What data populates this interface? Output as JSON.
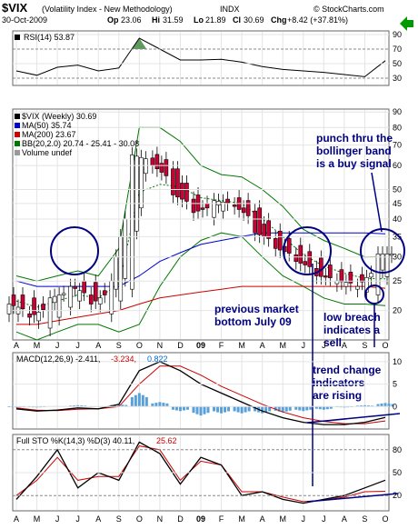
{
  "header": {
    "symbol": "$VIX",
    "description": "(Volatility Index - New Methodology)",
    "exchange": "INDX",
    "date": "30-Oct-2009",
    "open_label": "Op",
    "open": "23.06",
    "high_label": "Hi",
    "high": "31.59",
    "low_label": "Lo",
    "low": "21.89",
    "close_label": "Cl",
    "close": "30.69",
    "change_label": "Chg",
    "change": "+8.42 (+37.81%)",
    "watermark": "© StockCharts.com",
    "trend_arrow_color": "#009900"
  },
  "chart_data": [
    {
      "type": "line",
      "panel": "rsi",
      "legend": "RSI(14) 53.87",
      "ylim": [
        20,
        95
      ],
      "ticks": [
        "90",
        "70",
        "50",
        "30"
      ],
      "reference_lines": [
        70,
        30
      ],
      "x": [
        "Apr-08",
        "May-08",
        "Jun-08",
        "Jul-08",
        "Aug-08",
        "Sep-08",
        "Oct-08",
        "Nov-08",
        "Dec-08",
        "Jan-09",
        "Feb-09",
        "Mar-09",
        "Apr-09",
        "May-09",
        "Jun-09",
        "Jul-09",
        "Aug-09",
        "Sep-09",
        "Oct-09"
      ],
      "series": [
        {
          "name": "RSI(14)",
          "values": [
            40,
            34,
            45,
            48,
            40,
            44,
            85,
            70,
            55,
            55,
            56,
            52,
            46,
            42,
            40,
            38,
            35,
            32,
            54
          ]
        }
      ]
    },
    {
      "type": "candlestick",
      "panel": "price",
      "legend": [
        "$VIX (Weekly) 30.69",
        "MA(50) 35.74",
        "MA(200) 23.67",
        "BB(20,2.0) 20.74 - 25.41 - 30.08",
        "Volume undef"
      ],
      "ylim": [
        16,
        92
      ],
      "ticks": [
        "90",
        "80",
        "70",
        "60",
        "50",
        "45",
        "40",
        "35",
        "30",
        "25",
        "20"
      ],
      "x": [
        "Apr-08",
        "May-08",
        "Jun-08",
        "Jul-08",
        "Aug-08",
        "Sep-08",
        "Oct-08",
        "Nov-08",
        "Dec-08",
        "Jan-09",
        "Feb-09",
        "Mar-09",
        "Apr-09",
        "May-09",
        "Jun-09",
        "Jul-09",
        "Aug-09",
        "Sep-09",
        "Oct-09"
      ],
      "series": [
        {
          "name": "$VIX (Weekly)",
          "values": [
            21,
            19,
            22,
            24,
            21,
            25,
            65,
            60,
            48,
            42,
            46,
            44,
            36,
            32,
            29,
            26,
            25,
            24,
            30.69
          ]
        },
        {
          "name": "MA(50)",
          "values": [
            25,
            24,
            24,
            24,
            24,
            24,
            26,
            29,
            31,
            33,
            34,
            35,
            36,
            36,
            36,
            36,
            36,
            36,
            35.74
          ]
        },
        {
          "name": "MA(200)",
          "values": [
            18,
            18,
            18.5,
            19,
            19.5,
            20,
            21,
            22,
            22.5,
            23,
            23.5,
            24,
            24,
            24,
            24,
            24,
            24,
            24,
            23.67
          ]
        },
        {
          "name": "BB upper",
          "values": [
            26,
            25,
            26,
            27,
            26,
            32,
            80,
            80,
            72,
            60,
            56,
            55,
            50,
            44,
            37,
            34,
            32,
            30,
            30.08
          ]
        },
        {
          "name": "BB lower",
          "values": [
            17,
            16,
            17,
            18,
            18,
            17,
            18,
            24,
            30,
            34,
            36,
            35,
            30,
            26,
            24,
            22,
            21,
            21,
            20.74
          ]
        }
      ],
      "annotations": [
        "punch thru the bollinger band is a buy signal",
        "previous market bottom July 09",
        "low breach indicates a sell"
      ]
    },
    {
      "type": "line",
      "panel": "macd",
      "legend": [
        "MACD(12,26,9) -2.411,",
        "-3.234,",
        "0.822"
      ],
      "ylim": [
        -5,
        12
      ],
      "ticks": [
        "10",
        "5",
        "0"
      ],
      "x": [
        "Apr-08",
        "May-08",
        "Jun-08",
        "Jul-08",
        "Aug-08",
        "Sep-08",
        "Oct-08",
        "Nov-08",
        "Dec-08",
        "Jan-09",
        "Feb-09",
        "Mar-09",
        "Apr-09",
        "May-09",
        "Jun-09",
        "Jul-09",
        "Aug-09",
        "Sep-09",
        "Oct-09"
      ],
      "series": [
        {
          "name": "MACD",
          "values": [
            -0.5,
            -1,
            -0.8,
            -0.3,
            -0.5,
            0.5,
            8,
            10,
            8,
            5,
            3,
            1,
            -1,
            -2.5,
            -3.5,
            -4,
            -4,
            -3.5,
            -2.4
          ]
        },
        {
          "name": "Signal",
          "values": [
            -0.3,
            -0.8,
            -0.9,
            -0.6,
            -0.5,
            0,
            5,
            9,
            9,
            7,
            4.5,
            2.5,
            0.5,
            -1.2,
            -2.5,
            -3.3,
            -3.8,
            -3.8,
            -3.2
          ]
        },
        {
          "name": "Histogram",
          "values": [
            -0.2,
            -0.2,
            0.1,
            0.3,
            0,
            0.5,
            3,
            1,
            -1,
            -2,
            -1.5,
            -1.5,
            -1.5,
            -1.3,
            -1,
            -0.7,
            -0.2,
            0.3,
            0.8
          ]
        }
      ],
      "annotations": [
        "trend change indicators are rising"
      ]
    },
    {
      "type": "line",
      "panel": "stochastic",
      "legend": [
        "Full STO %K(14,3) %D(3) 40.11,",
        "25.62"
      ],
      "ylim": [
        0,
        100
      ],
      "ticks": [
        "80",
        "50",
        "20"
      ],
      "reference_lines": [
        80,
        20
      ],
      "x": [
        "Apr-08",
        "May-08",
        "Jun-08",
        "Jul-08",
        "Aug-08",
        "Sep-08",
        "Oct-08",
        "Nov-08",
        "Dec-08",
        "Jan-09",
        "Feb-09",
        "Mar-09",
        "Apr-09",
        "May-09",
        "Jun-09",
        "Jul-09",
        "Aug-09",
        "Sep-09",
        "Oct-09"
      ],
      "series": [
        {
          "name": "%K",
          "values": [
            15,
            45,
            80,
            30,
            50,
            40,
            90,
            75,
            35,
            70,
            60,
            20,
            25,
            15,
            10,
            15,
            20,
            30,
            40.11
          ]
        },
        {
          "name": "%D",
          "values": [
            20,
            40,
            70,
            40,
            45,
            45,
            85,
            80,
            40,
            65,
            60,
            25,
            25,
            18,
            12,
            14,
            18,
            25,
            25.62
          ]
        }
      ]
    }
  ],
  "x_axis_labels": [
    "A",
    "M",
    "J",
    "J",
    "A",
    "S",
    "O",
    "N",
    "D",
    "09",
    "F",
    "M",
    "A",
    "M",
    "J",
    "J",
    "A",
    "S",
    "O"
  ]
}
